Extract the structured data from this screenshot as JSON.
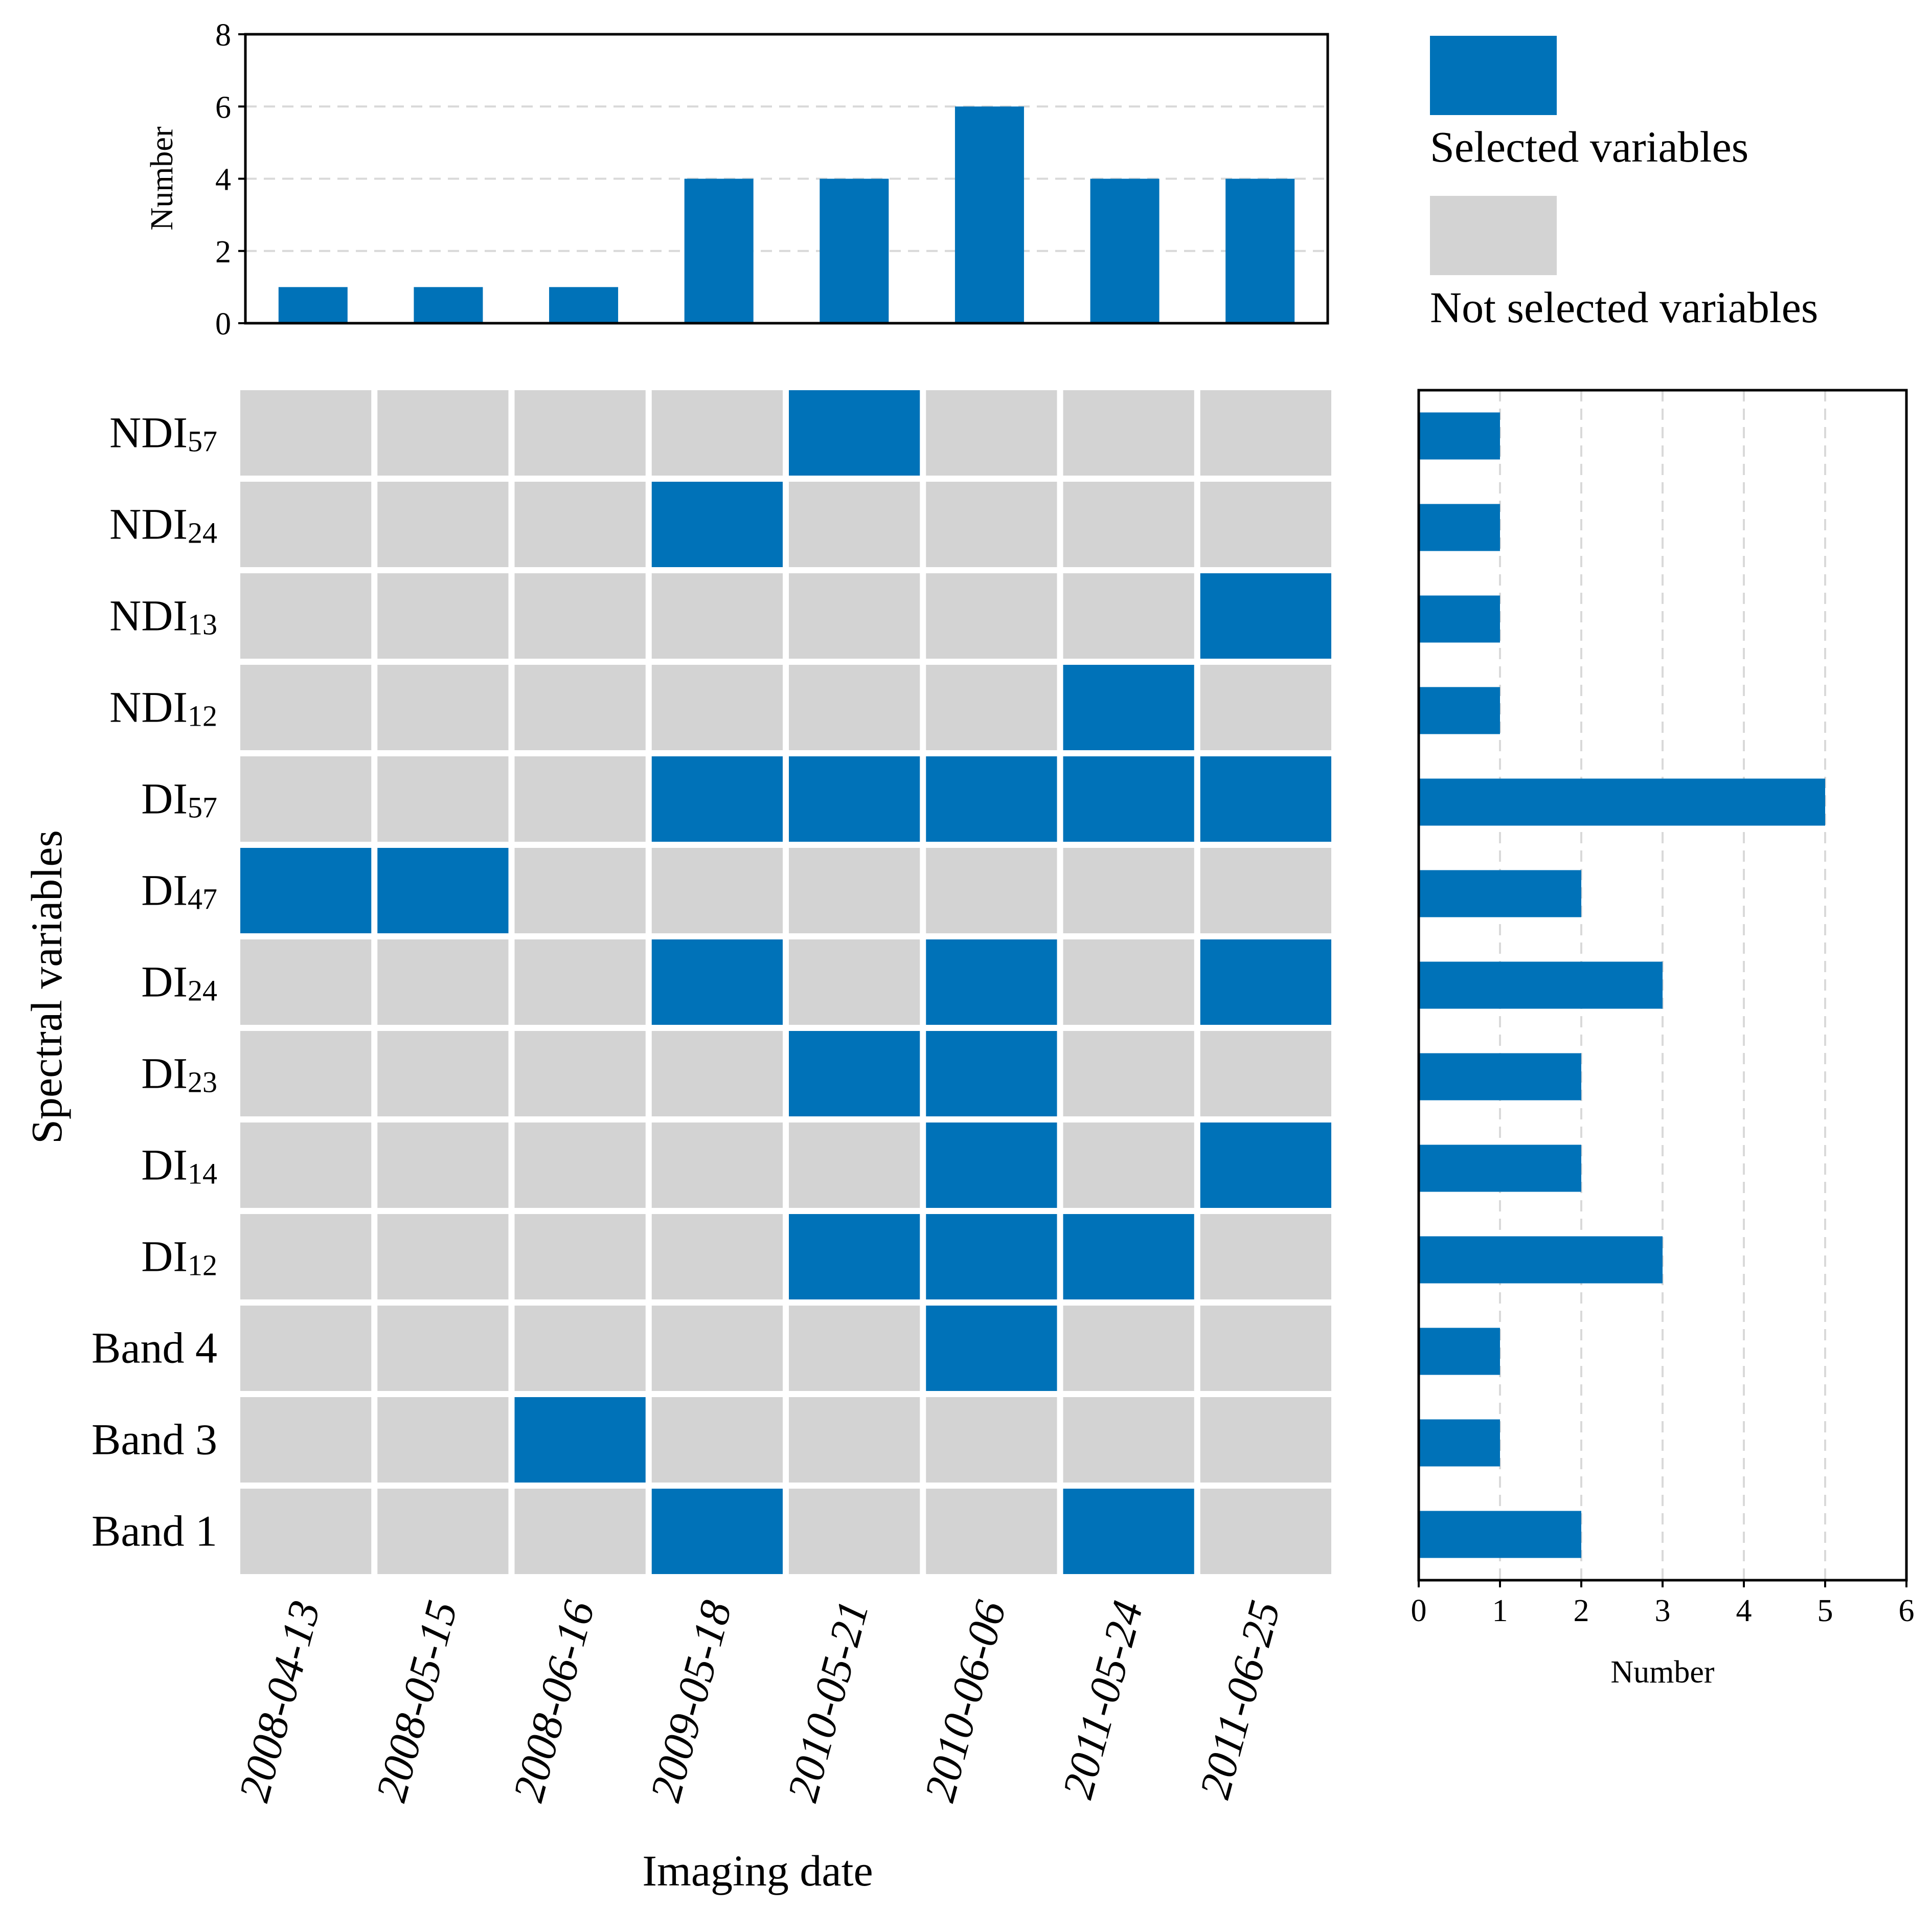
{
  "colors": {
    "selected": "#0072b8",
    "not_selected": "#d3d3d3",
    "axis": "#000000",
    "grid": "#d9d9d9"
  },
  "chart_data": [
    {
      "id": "top",
      "type": "bar",
      "categories": [
        "2008-04-13",
        "2008-05-15",
        "2008-06-16",
        "2009-05-18",
        "2010-05-21",
        "2010-06-06",
        "2011-05-24",
        "2011-06-25"
      ],
      "values": [
        1,
        1,
        1,
        4,
        4,
        6,
        4,
        4
      ],
      "ylabel": "Number",
      "ylim": [
        0,
        8
      ],
      "yticks": [
        "0",
        "2",
        "4",
        "6",
        "8"
      ],
      "grid": true
    },
    {
      "id": "heatmap",
      "type": "heatmap",
      "title": "",
      "xlabel": "Imaging date",
      "ylabel": "Spectral variables",
      "x_categories": [
        "2008-04-13",
        "2008-05-15",
        "2008-06-16",
        "2009-05-18",
        "2010-05-21",
        "2010-06-06",
        "2011-05-24",
        "2011-06-25"
      ],
      "rows": [
        {
          "base": "NDI",
          "sub": "57",
          "cells": [
            0,
            0,
            0,
            0,
            1,
            0,
            0,
            0
          ]
        },
        {
          "base": "NDI",
          "sub": "24",
          "cells": [
            0,
            0,
            0,
            1,
            0,
            0,
            0,
            0
          ]
        },
        {
          "base": "NDI",
          "sub": "13",
          "cells": [
            0,
            0,
            0,
            0,
            0,
            0,
            0,
            1
          ]
        },
        {
          "base": "NDI",
          "sub": "12",
          "cells": [
            0,
            0,
            0,
            0,
            0,
            0,
            1,
            0
          ]
        },
        {
          "base": "DI",
          "sub": "57",
          "cells": [
            0,
            0,
            0,
            1,
            1,
            1,
            1,
            1
          ]
        },
        {
          "base": "DI",
          "sub": "47",
          "cells": [
            1,
            1,
            0,
            0,
            0,
            0,
            0,
            0
          ]
        },
        {
          "base": "DI",
          "sub": "24",
          "cells": [
            0,
            0,
            0,
            1,
            0,
            1,
            0,
            1
          ]
        },
        {
          "base": "DI",
          "sub": "23",
          "cells": [
            0,
            0,
            0,
            0,
            1,
            1,
            0,
            0
          ]
        },
        {
          "base": "DI",
          "sub": "14",
          "cells": [
            0,
            0,
            0,
            0,
            0,
            1,
            0,
            1
          ]
        },
        {
          "base": "DI",
          "sub": "12",
          "cells": [
            0,
            0,
            0,
            0,
            1,
            1,
            1,
            0
          ]
        },
        {
          "base": "Band 4",
          "sub": "",
          "cells": [
            0,
            0,
            0,
            0,
            0,
            1,
            0,
            0
          ]
        },
        {
          "base": "Band 3",
          "sub": "",
          "cells": [
            0,
            0,
            1,
            0,
            0,
            0,
            0,
            0
          ]
        },
        {
          "base": "Band 1",
          "sub": "",
          "cells": [
            0,
            0,
            0,
            1,
            0,
            0,
            1,
            0
          ]
        }
      ]
    },
    {
      "id": "right",
      "type": "bar",
      "orientation": "horizontal",
      "categories": [
        "NDI57",
        "NDI24",
        "NDI13",
        "NDI12",
        "DI57",
        "DI47",
        "DI24",
        "DI23",
        "DI14",
        "DI12",
        "Band 4",
        "Band 3",
        "Band 1"
      ],
      "values": [
        1,
        1,
        1,
        1,
        5,
        2,
        3,
        2,
        2,
        3,
        1,
        1,
        2
      ],
      "xlabel": "Number",
      "xlim": [
        0,
        6
      ],
      "xticks": [
        "0",
        "1",
        "2",
        "3",
        "4",
        "5",
        "6"
      ],
      "grid": true
    }
  ],
  "legend": {
    "placement": "top-right",
    "items": [
      {
        "label": "Selected variables",
        "color": "#0072b8"
      },
      {
        "label": "Not selected variables",
        "color": "#d3d3d3"
      }
    ]
  }
}
